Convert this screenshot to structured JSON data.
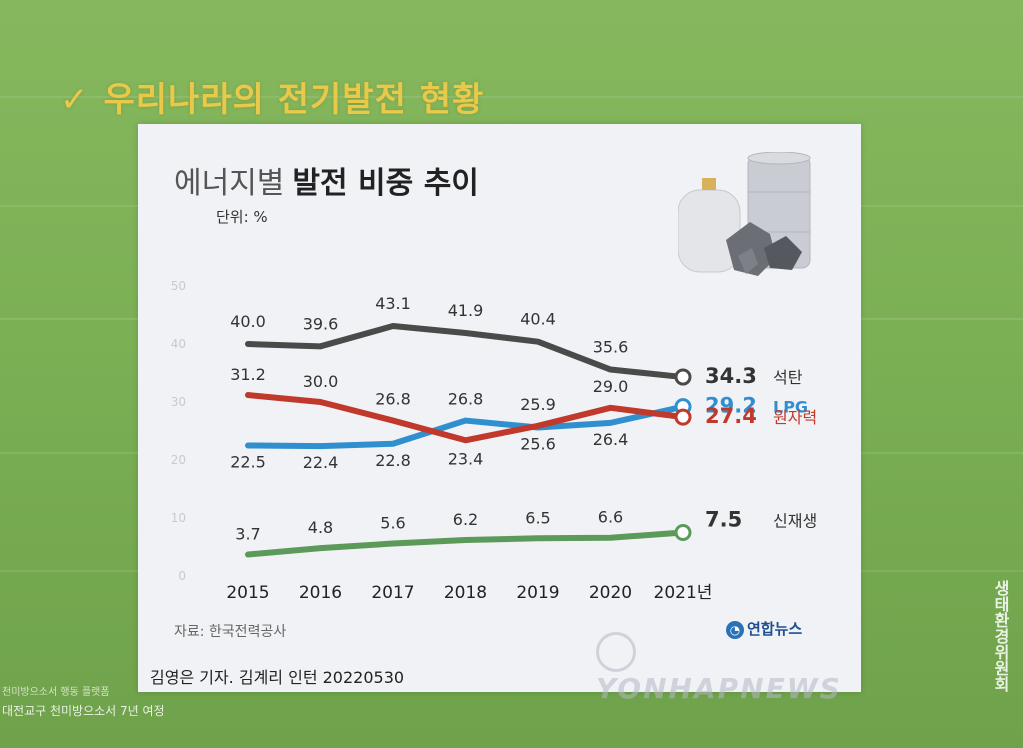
{
  "slide": {
    "check_mark": "✓",
    "title": "우리나라의 전기발전 현황",
    "footer_line1": "천미방으소서 행동 플랫폼",
    "footer_line2": "대전교구 천미방으소서 7년 여정",
    "side_text": "생태환경위원회"
  },
  "card": {
    "title_light": "에너지별",
    "title_bold": "발전 비중 추이",
    "unit": "단위: %",
    "source": "자료: 한국전력공사",
    "credit": "김영은 기자. 김계리 인턴  20220530",
    "logo": "연합뉴스",
    "watermark": "YONHAPNEWS"
  },
  "chart_data": {
    "type": "line",
    "categories": [
      "2015",
      "2016",
      "2017",
      "2018",
      "2019",
      "2020",
      "2021년"
    ],
    "ylim": [
      0,
      50
    ],
    "yticks": [
      "0",
      "10",
      "20",
      "30",
      "40",
      "50"
    ],
    "grid": false,
    "legend": "end-of-line labels",
    "series": [
      {
        "name": "석탄",
        "color": "#4a4a4a",
        "values": [
          40.0,
          39.6,
          43.1,
          41.9,
          40.4,
          35.6,
          34.3
        ],
        "labels": [
          "40.0",
          "39.6",
          "43.1",
          "41.9",
          "40.4",
          "35.6",
          "34.3"
        ]
      },
      {
        "name": "LPG",
        "color": "#2f8fcf",
        "values": [
          22.5,
          22.4,
          22.8,
          26.8,
          25.6,
          26.4,
          29.2
        ],
        "labels": [
          "22.5",
          "22.4",
          "22.8",
          "26.8",
          "25.6",
          "26.4",
          "29.2"
        ]
      },
      {
        "name": "원자력",
        "color": "#c0392b",
        "values": [
          31.2,
          30.0,
          26.8,
          23.4,
          25.9,
          29.0,
          27.4
        ],
        "labels": [
          "31.2",
          "30.0",
          "26.8",
          "23.4",
          "25.9",
          "29.0",
          "27.4"
        ]
      },
      {
        "name": "신재생",
        "color": "#5c9a5a",
        "values": [
          3.7,
          4.8,
          5.6,
          6.2,
          6.5,
          6.6,
          7.5
        ],
        "labels": [
          "3.7",
          "4.8",
          "5.6",
          "6.2",
          "6.5",
          "6.6",
          "7.5"
        ]
      }
    ]
  }
}
